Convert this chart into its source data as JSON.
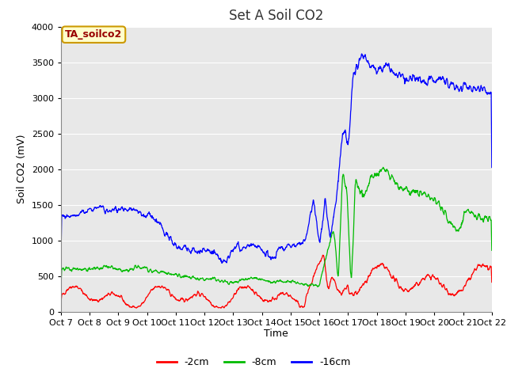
{
  "title": "Set A Soil CO2",
  "xlabel": "Time",
  "ylabel": "Soil CO2 (mV)",
  "ylim": [
    0,
    4000
  ],
  "yticks": [
    0,
    500,
    1000,
    1500,
    2000,
    2500,
    3000,
    3500,
    4000
  ],
  "xtick_labels": [
    "Oct 7",
    "Oct 8",
    "Oct 9",
    "Oct 10",
    "Oct 11",
    "Oct 12",
    "Oct 13",
    "Oct 14",
    "Oct 15",
    "Oct 16",
    "Oct 17",
    "Oct 18",
    "Oct 19",
    "Oct 20",
    "Oct 21",
    "Oct 22"
  ],
  "background_color": "#ffffff",
  "plot_bg_color": "#e8e8e8",
  "legend_label": "TA_soilco2",
  "legend_bg": "#ffffcc",
  "legend_edge": "#cc9900",
  "line_colors": {
    "2cm": "#ff0000",
    "8cm": "#00bb00",
    "16cm": "#0000ff"
  },
  "line_labels": [
    "-2cm",
    "-8cm",
    "-16cm"
  ],
  "grid_color": "#ffffff",
  "title_fontsize": 12,
  "axis_fontsize": 9,
  "tick_fontsize": 8
}
